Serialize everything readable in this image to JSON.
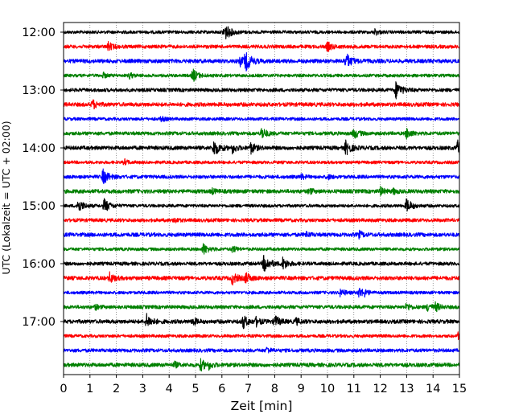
{
  "chart_data": {
    "type": "line",
    "title": "",
    "xlabel": "Zeit  [min]",
    "ylabel": "UTC (Lokalzeit = UTC + 02:00)",
    "xlim": [
      0,
      15
    ],
    "x_ticks": [
      0,
      1,
      2,
      3,
      4,
      5,
      6,
      7,
      8,
      9,
      10,
      11,
      12,
      13,
      14,
      15
    ],
    "y_ticks": [
      "12:00",
      "13:00",
      "14:00",
      "15:00",
      "16:00",
      "17:00"
    ],
    "trace_minutes": 15,
    "grid": "vertical dotted at each minute",
    "colors": [
      "#000000",
      "#ff0000",
      "#0000ff",
      "#008000"
    ],
    "traces": [
      {
        "start": "12:00",
        "events": [
          [
            6.1,
            1.0
          ],
          [
            11.8,
            0.35
          ]
        ]
      },
      {
        "start": "12:15",
        "events": [
          [
            1.7,
            0.5
          ],
          [
            10.0,
            0.55
          ]
        ]
      },
      {
        "start": "12:30",
        "events": [
          [
            6.9,
            1.0
          ],
          [
            6.7,
            0.5
          ],
          [
            10.7,
            0.9
          ]
        ]
      },
      {
        "start": "12:45",
        "events": [
          [
            1.5,
            0.3
          ],
          [
            2.5,
            0.35
          ],
          [
            4.9,
            0.75
          ]
        ]
      },
      {
        "start": "13:00",
        "events": [
          [
            12.6,
            0.95
          ]
        ]
      },
      {
        "start": "13:15",
        "events": [
          [
            1.1,
            0.55
          ]
        ]
      },
      {
        "start": "13:30",
        "events": [
          [
            3.7,
            0.3
          ]
        ]
      },
      {
        "start": "13:45",
        "events": [
          [
            7.5,
            0.7
          ],
          [
            11.0,
            0.6
          ],
          [
            13.0,
            0.6
          ]
        ]
      },
      {
        "start": "14:00",
        "events": [
          [
            5.7,
            0.9
          ],
          [
            6.4,
            0.55
          ],
          [
            7.1,
            0.6
          ],
          [
            10.7,
            0.8
          ],
          [
            14.95,
            0.9
          ]
        ]
      },
      {
        "start": "14:15",
        "events": [
          [
            2.3,
            0.35
          ]
        ]
      },
      {
        "start": "14:30",
        "events": [
          [
            1.5,
            0.85
          ],
          [
            9.0,
            0.3
          ],
          [
            10.0,
            0.3
          ]
        ]
      },
      {
        "start": "14:45",
        "events": [
          [
            5.6,
            0.35
          ],
          [
            9.3,
            0.35
          ],
          [
            12.0,
            0.45
          ],
          [
            12.5,
            0.3
          ]
        ]
      },
      {
        "start": "15:00",
        "events": [
          [
            0.55,
            0.8
          ],
          [
            1.55,
            0.8
          ],
          [
            13.0,
            0.8
          ]
        ]
      },
      {
        "start": "15:15",
        "events": [
          [
            4.2,
            0.3
          ]
        ]
      },
      {
        "start": "15:30",
        "events": [
          [
            9.2,
            0.3
          ],
          [
            11.2,
            0.4
          ]
        ]
      },
      {
        "start": "15:45",
        "events": [
          [
            5.3,
            0.65
          ],
          [
            6.4,
            0.4
          ]
        ]
      },
      {
        "start": "16:00",
        "events": [
          [
            7.6,
            1.0
          ],
          [
            8.3,
            0.7
          ]
        ]
      },
      {
        "start": "16:15",
        "events": [
          [
            1.75,
            0.6
          ],
          [
            6.4,
            0.7
          ],
          [
            6.9,
            0.6
          ]
        ]
      },
      {
        "start": "16:30",
        "events": [
          [
            10.5,
            0.5
          ],
          [
            11.2,
            0.6
          ],
          [
            11.4,
            0.3
          ]
        ]
      },
      {
        "start": "16:45",
        "events": [
          [
            1.2,
            0.3
          ],
          [
            13.0,
            0.45
          ],
          [
            13.8,
            0.5
          ],
          [
            14.1,
            0.45
          ]
        ]
      },
      {
        "start": "17:00",
        "events": [
          [
            3.15,
            0.8
          ],
          [
            4.9,
            0.45
          ],
          [
            6.8,
            0.75
          ],
          [
            7.3,
            0.45
          ],
          [
            8.0,
            0.7
          ],
          [
            8.8,
            0.4
          ]
        ]
      },
      {
        "start": "17:15",
        "events": [
          [
            14.95,
            0.35
          ]
        ]
      },
      {
        "start": "17:30",
        "events": [
          [
            7.7,
            0.35
          ]
        ]
      },
      {
        "start": "17:45",
        "events": [
          [
            4.2,
            0.35
          ],
          [
            5.2,
            0.65
          ],
          [
            5.5,
            0.4
          ]
        ]
      }
    ]
  }
}
